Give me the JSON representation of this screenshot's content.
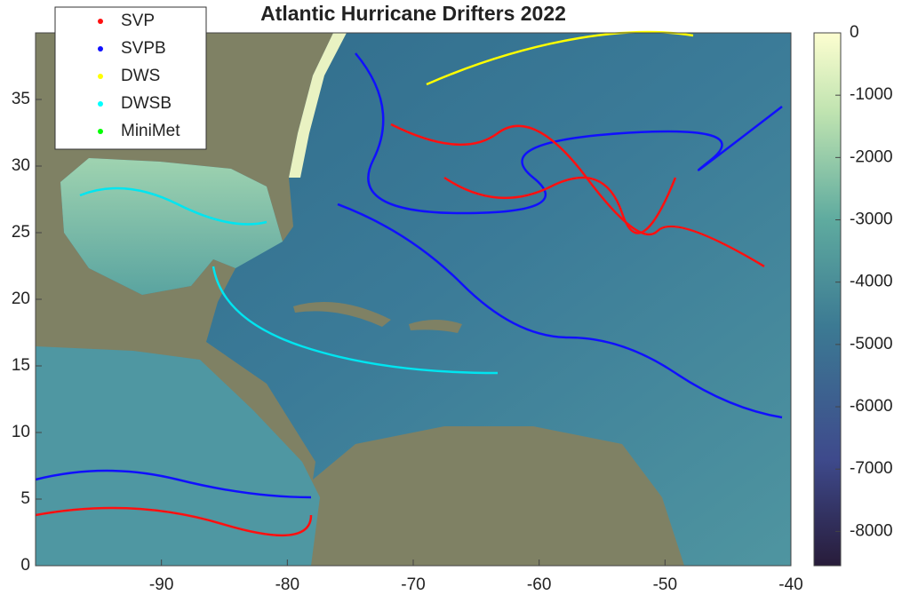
{
  "chart_data": {
    "type": "map",
    "title": "Atlantic Hurricane Drifters 2022",
    "xlim": [
      -100,
      -40
    ],
    "xticks": [
      -90,
      -80,
      -70,
      -60,
      -50,
      -40
    ],
    "ylim": [
      0,
      40
    ],
    "yticks": [
      0,
      5,
      10,
      15,
      20,
      25,
      30,
      35
    ],
    "clim": [
      -8550,
      0
    ],
    "cticks": [
      -8000,
      -7000,
      -6000,
      -5000,
      -4000,
      -3000,
      -2000,
      -1000,
      0
    ],
    "series": [
      {
        "name": "SVP",
        "color": "#ff1010"
      },
      {
        "name": "SVPB",
        "color": "#1010ff"
      },
      {
        "name": "DWS",
        "color": "#ffff00"
      },
      {
        "name": "DWSB",
        "color": "#00ffff"
      },
      {
        "name": "MiniMet",
        "color": "#00ff00"
      }
    ]
  }
}
